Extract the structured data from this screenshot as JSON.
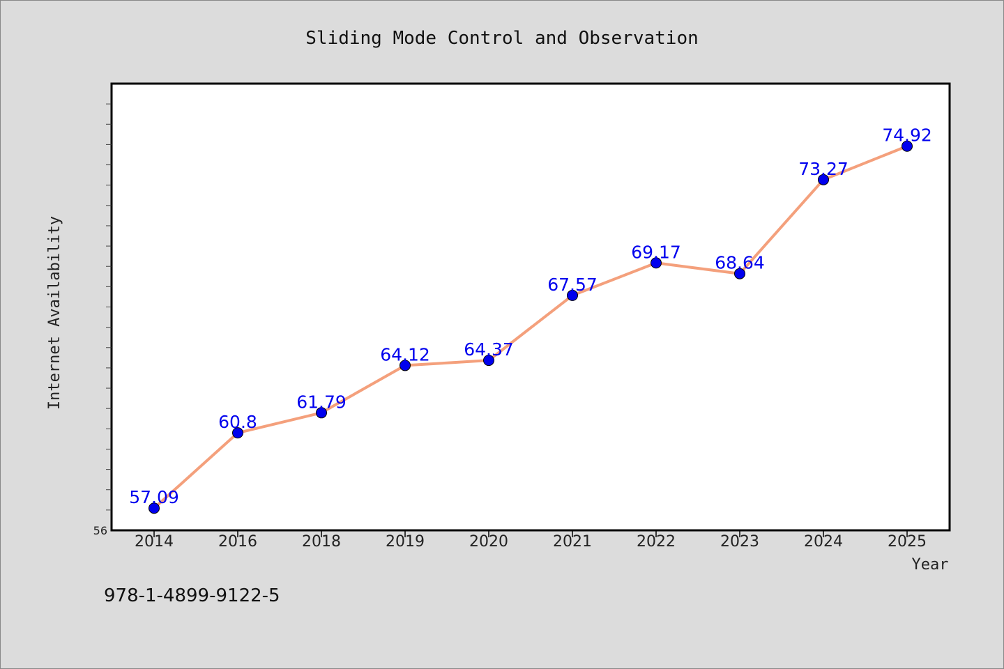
{
  "chart_data": {
    "type": "line",
    "title": "Sliding Mode Control and Observation",
    "xlabel": "Year",
    "ylabel": "Internet Availability",
    "categories": [
      "2014",
      "2016",
      "2018",
      "2019",
      "2020",
      "2021",
      "2022",
      "2023",
      "2024",
      "2025"
    ],
    "series": [
      {
        "values": [
          57.09,
          60.8,
          61.79,
          64.12,
          64.37,
          67.57,
          69.17,
          68.64,
          73.27,
          74.92
        ]
      }
    ],
    "data_labels": [
      "57.09",
      "60.8",
      "61.79",
      "64.12",
      "64.37",
      "67.57",
      "69.17",
      "68.64",
      "73.27",
      "74.92"
    ],
    "y_tick_labels": [
      "56"
    ],
    "ylim": [
      56,
      78
    ],
    "grid": false,
    "line_color": "#f4a07c",
    "marker_color": "#0000ee",
    "label_color": "#0000ee"
  },
  "footer": {
    "isbn": "978-1-4899-9122-5"
  }
}
